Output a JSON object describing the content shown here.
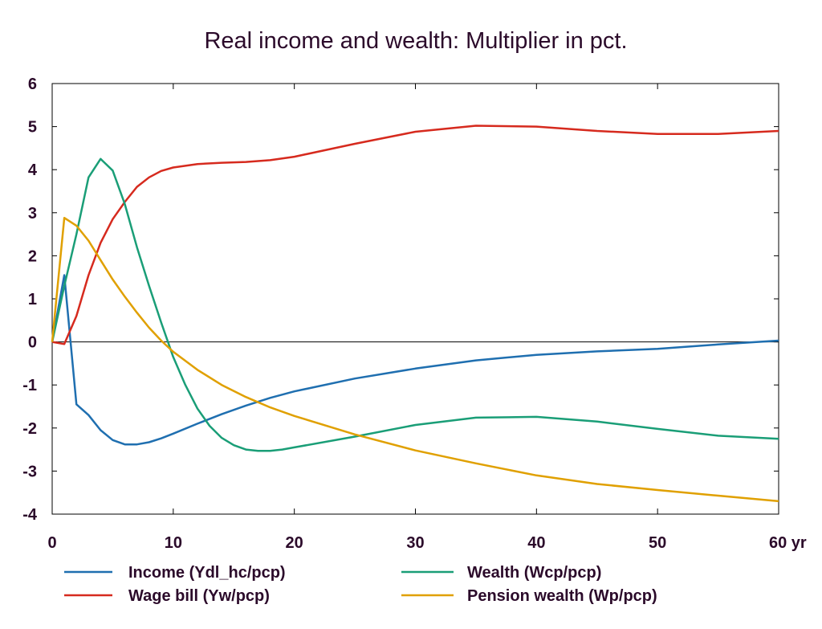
{
  "chart_data": {
    "type": "line",
    "title": "Real income and wealth: Multiplier in pct.",
    "xlabel": "",
    "ylabel": "",
    "xlim": [
      0,
      60
    ],
    "ylim": [
      -4,
      6
    ],
    "x_ticks": [
      "0",
      "10",
      "20",
      "30",
      "40",
      "50",
      "60 yr"
    ],
    "y_ticks": [
      "6",
      "5",
      "4",
      "3",
      "2",
      "1",
      "0",
      "-1",
      "-2",
      "-3",
      "-4"
    ],
    "grid": false,
    "legend_position": "bottom",
    "series": [
      {
        "name": "Income (Ydl_hc/pcp)",
        "color": "#1f6fb0",
        "points": [
          [
            0,
            0
          ],
          [
            1,
            1.55
          ],
          [
            2,
            -1.45
          ],
          [
            3,
            -1.7
          ],
          [
            4,
            -2.05
          ],
          [
            5,
            -2.28
          ],
          [
            6,
            -2.38
          ],
          [
            7,
            -2.38
          ],
          [
            8,
            -2.33
          ],
          [
            9,
            -2.24
          ],
          [
            10,
            -2.13
          ],
          [
            12,
            -1.9
          ],
          [
            14,
            -1.68
          ],
          [
            16,
            -1.48
          ],
          [
            18,
            -1.3
          ],
          [
            20,
            -1.15
          ],
          [
            25,
            -0.85
          ],
          [
            30,
            -0.62
          ],
          [
            35,
            -0.43
          ],
          [
            40,
            -0.3
          ],
          [
            45,
            -0.22
          ],
          [
            50,
            -0.16
          ],
          [
            55,
            -0.06
          ],
          [
            60,
            0.03
          ]
        ]
      },
      {
        "name": "Wage bill (Yw/pcp)",
        "color": "#d62a1e",
        "points": [
          [
            0,
            0
          ],
          [
            1,
            -0.05
          ],
          [
            2,
            0.6
          ],
          [
            3,
            1.55
          ],
          [
            4,
            2.3
          ],
          [
            5,
            2.85
          ],
          [
            6,
            3.25
          ],
          [
            7,
            3.6
          ],
          [
            8,
            3.82
          ],
          [
            9,
            3.97
          ],
          [
            10,
            4.05
          ],
          [
            12,
            4.13
          ],
          [
            14,
            4.16
          ],
          [
            16,
            4.18
          ],
          [
            18,
            4.22
          ],
          [
            20,
            4.3
          ],
          [
            25,
            4.6
          ],
          [
            30,
            4.88
          ],
          [
            35,
            5.02
          ],
          [
            40,
            5.0
          ],
          [
            45,
            4.9
          ],
          [
            50,
            4.83
          ],
          [
            55,
            4.83
          ],
          [
            60,
            4.9
          ]
        ]
      },
      {
        "name": "Wealth (Wcp/pcp)",
        "color": "#1a9e77",
        "points": [
          [
            0,
            0
          ],
          [
            1,
            1.3
          ],
          [
            2,
            2.5
          ],
          [
            3,
            3.82
          ],
          [
            4,
            4.25
          ],
          [
            5,
            3.98
          ],
          [
            6,
            3.2
          ],
          [
            7,
            2.2
          ],
          [
            8,
            1.3
          ],
          [
            9,
            0.45
          ],
          [
            10,
            -0.35
          ],
          [
            11,
            -1.0
          ],
          [
            12,
            -1.55
          ],
          [
            13,
            -1.95
          ],
          [
            14,
            -2.23
          ],
          [
            15,
            -2.4
          ],
          [
            16,
            -2.5
          ],
          [
            17,
            -2.53
          ],
          [
            18,
            -2.53
          ],
          [
            19,
            -2.5
          ],
          [
            20,
            -2.45
          ],
          [
            25,
            -2.2
          ],
          [
            30,
            -1.93
          ],
          [
            35,
            -1.76
          ],
          [
            40,
            -1.74
          ],
          [
            45,
            -1.85
          ],
          [
            50,
            -2.02
          ],
          [
            55,
            -2.18
          ],
          [
            60,
            -2.25
          ]
        ]
      },
      {
        "name": "Pension wealth (Wp/pcp)",
        "color": "#e0a000",
        "points": [
          [
            0,
            0
          ],
          [
            1,
            2.88
          ],
          [
            2,
            2.7
          ],
          [
            3,
            2.35
          ],
          [
            4,
            1.9
          ],
          [
            5,
            1.45
          ],
          [
            6,
            1.05
          ],
          [
            7,
            0.68
          ],
          [
            8,
            0.33
          ],
          [
            9,
            0.03
          ],
          [
            10,
            -0.23
          ],
          [
            12,
            -0.65
          ],
          [
            14,
            -1.0
          ],
          [
            16,
            -1.28
          ],
          [
            18,
            -1.52
          ],
          [
            20,
            -1.72
          ],
          [
            25,
            -2.15
          ],
          [
            30,
            -2.52
          ],
          [
            35,
            -2.82
          ],
          [
            40,
            -3.1
          ],
          [
            45,
            -3.3
          ],
          [
            50,
            -3.44
          ],
          [
            55,
            -3.57
          ],
          [
            60,
            -3.7
          ]
        ]
      }
    ]
  }
}
